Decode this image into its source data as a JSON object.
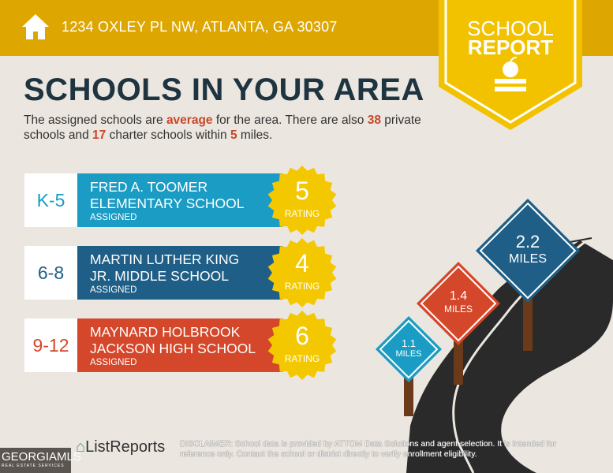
{
  "header": {
    "address": "1234 OXLEY PL NW, ATLANTA, GA 30307",
    "icon": "home-icon"
  },
  "badge": {
    "line1": "SCHOOL",
    "line2": "REPORT",
    "icon": "apple-on-book-icon"
  },
  "title": "SCHOOLS IN YOUR AREA",
  "intro": {
    "p1": "The assigned schools are ",
    "quality": "average",
    "p2": " for the area. There are also ",
    "private_count": "38",
    "p3": " private schools and ",
    "charter_count": "17",
    "p4": " charter schools within ",
    "miles": "5",
    "p5": " miles."
  },
  "schools": [
    {
      "grades": "K-5",
      "name1": "FRED A. TOOMER",
      "name2": "ELEMENTARY SCHOOL",
      "status": "ASSIGNED",
      "rating": "5",
      "rating_label": "RATING",
      "color": "#1a9cc4"
    },
    {
      "grades": "6-8",
      "name1": "MARTIN LUTHER KING",
      "name2": "JR. MIDDLE SCHOOL",
      "status": "ASSIGNED",
      "rating": "4",
      "rating_label": "RATING",
      "color": "#1f5e86"
    },
    {
      "grades": "9-12",
      "name1": "MAYNARD HOLBROOK",
      "name2": "JACKSON HIGH SCHOOL",
      "status": "ASSIGNED",
      "rating": "6",
      "rating_label": "RATING",
      "color": "#d4472a"
    }
  ],
  "signs": [
    {
      "value": "1.1",
      "unit": "MILES",
      "color": "#1a9cc4"
    },
    {
      "value": "1.4",
      "unit": "MILES",
      "color": "#d4472a"
    },
    {
      "value": "2.2",
      "unit": "MILES",
      "color": "#1f5e86"
    }
  ],
  "footer": {
    "logo": "ListReports",
    "watermark": "GEORGIAMLS",
    "watermark_sub": "REAL ESTATE SERVICES",
    "disclaimer_label": "DISCLAIMER:",
    "disclaimer": " School data is provided by ATTOM Data Solutions and agent selection. It is intended for reference only. Contact the school or district directly to verify enrollment eligibility."
  },
  "colors": {
    "header": "#dea600",
    "badge": "#f2c200",
    "star": "#f4c800"
  }
}
